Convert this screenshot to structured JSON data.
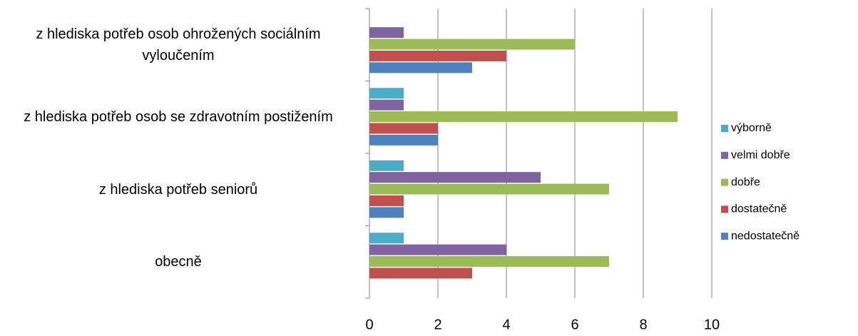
{
  "chart_data": {
    "type": "bar",
    "orientation": "horizontal",
    "categories": [
      "obecně",
      "z hlediska potřeb seniorů",
      "z hlediska potřeb osob se zdravotním postižením",
      "z hlediska potřeb osob ohrožených sociálním vyloučením"
    ],
    "series": [
      {
        "name": "nedostatečně",
        "color": "#4f81bd",
        "values": [
          0,
          1,
          2,
          3
        ]
      },
      {
        "name": "dostatečně",
        "color": "#c0504d",
        "values": [
          3,
          1,
          2,
          4
        ]
      },
      {
        "name": "dobře",
        "color": "#9bbb59",
        "values": [
          7,
          7,
          9,
          6
        ]
      },
      {
        "name": "velmi dobře",
        "color": "#8064a2",
        "values": [
          4,
          5,
          1,
          1
        ]
      },
      {
        "name": "výborně",
        "color": "#4bacc6",
        "values": [
          1,
          1,
          1,
          0
        ]
      }
    ],
    "xlim": [
      0,
      10
    ],
    "xticks": [
      0,
      2,
      4,
      6,
      8,
      10
    ],
    "grid": true,
    "legend": "right"
  }
}
